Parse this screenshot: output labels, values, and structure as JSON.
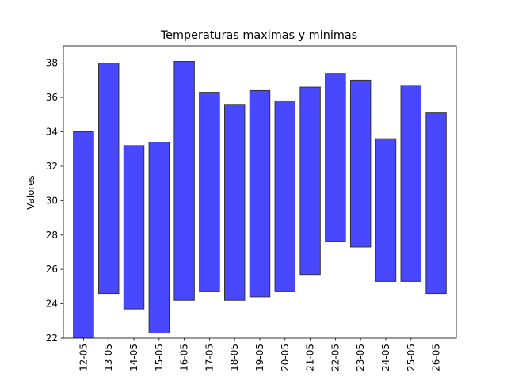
{
  "chart_data": {
    "type": "bar",
    "subtype": "floating-range",
    "title": "Temperaturas maximas y minimas",
    "xlabel": "",
    "ylabel": "Valores",
    "categories": [
      "12-05",
      "13-05",
      "14-05",
      "15-05",
      "16-05",
      "17-05",
      "18-05",
      "19-05",
      "20-05",
      "21-05",
      "22-05",
      "23-05",
      "24-05",
      "25-05",
      "26-05"
    ],
    "series": [
      {
        "min": [
          21.7,
          24.6,
          23.7,
          22.3,
          24.2,
          24.7,
          24.2,
          24.4,
          24.7,
          25.7,
          27.6,
          27.3,
          25.3,
          25.3,
          24.6
        ],
        "max": [
          34.0,
          38.0,
          33.2,
          33.4,
          38.1,
          36.3,
          35.6,
          36.4,
          35.8,
          36.6,
          37.4,
          37.0,
          33.6,
          36.7,
          35.1
        ]
      }
    ],
    "ylim": [
      22,
      39
    ],
    "yticks": [
      22,
      24,
      26,
      28,
      30,
      32,
      34,
      36,
      38
    ],
    "grid": false,
    "legend": "none",
    "colors": {
      "bar_fill": "#4848ff",
      "bar_edge": "#333333",
      "axis": "#000000"
    }
  }
}
